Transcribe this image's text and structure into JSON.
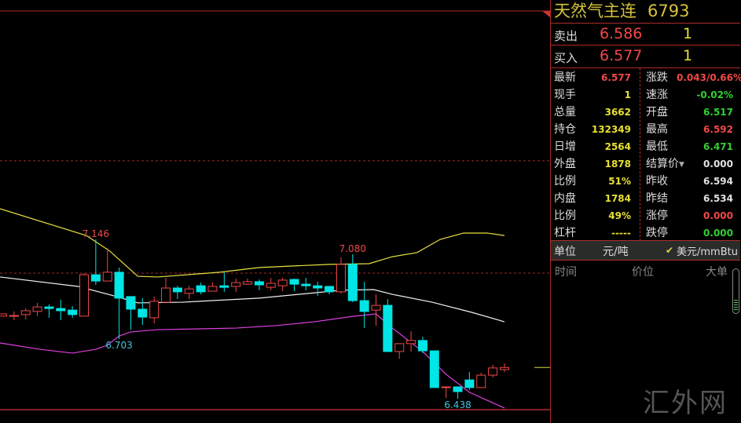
{
  "quote": {
    "name": "天然气主连",
    "code": "6793",
    "sell": {
      "label": "卖出",
      "price": "6.586",
      "qty": "1"
    },
    "buy": {
      "label": "买入",
      "price": "6.577",
      "qty": "1"
    },
    "left_fields": [
      {
        "label": "最新",
        "value": "6.577",
        "color": "#f04848"
      },
      {
        "label": "现手",
        "value": "1",
        "color": "#e8e030"
      },
      {
        "label": "总量",
        "value": "3662",
        "color": "#e8e030"
      },
      {
        "label": "持仓",
        "value": "132349",
        "color": "#e8e030"
      },
      {
        "label": "日增",
        "value": "2564",
        "color": "#e8e030"
      },
      {
        "label": "外盘",
        "value": "1878",
        "color": "#e8e030"
      },
      {
        "label": "比例",
        "value": "51%",
        "color": "#e8e030"
      },
      {
        "label": "内盘",
        "value": "1784",
        "color": "#e8e030"
      },
      {
        "label": "比例",
        "value": "49%",
        "color": "#e8e030"
      },
      {
        "label": "杠杆",
        "value": "-----",
        "color": "#e8e030"
      }
    ],
    "right_fields": [
      {
        "label": "涨跌",
        "value": "0.043/0.66%",
        "color": "#f04848"
      },
      {
        "label": "速涨",
        "value": "-0.02%",
        "color": "#30d030"
      },
      {
        "label": "开盘",
        "value": "6.517",
        "color": "#30d030"
      },
      {
        "label": "最高",
        "value": "6.592",
        "color": "#f04848"
      },
      {
        "label": "最低",
        "value": "6.471",
        "color": "#30d030"
      },
      {
        "label": "结算价",
        "value": "0.000",
        "color": "#e0e0e0",
        "dropdown": true
      },
      {
        "label": "昨收",
        "value": "6.594",
        "color": "#e0e0e0"
      },
      {
        "label": "昨结",
        "value": "6.534",
        "color": "#e0e0e0"
      },
      {
        "label": "涨停",
        "value": "0.000",
        "color": "#f04848"
      },
      {
        "label": "跌停",
        "value": "0.000",
        "color": "#30d030"
      }
    ],
    "unit": {
      "label": "单位",
      "option1": "元/吨",
      "option2": "美元/mmBtu",
      "selected": "美元/mmBtu"
    },
    "trade_headers": [
      "时间",
      "价位",
      "大单"
    ],
    "watermark": "汇外网"
  },
  "chart_data": {
    "type": "candlestick",
    "up_color": "#f04848",
    "down_color": "#00e5e5",
    "ylim": [
      6.37,
      7.5
    ],
    "annotations": [
      {
        "text": "7.146",
        "bar": 9,
        "price": 7.146,
        "color": "#f04848"
      },
      {
        "text": "6.703",
        "bar": 11,
        "price": 6.703,
        "color": "#40c8e0"
      },
      {
        "text": "7.080",
        "bar": 31,
        "price": 7.08,
        "color": "#f04848"
      },
      {
        "text": "6.438",
        "bar": 40,
        "price": 6.438,
        "color": "#40c8e0"
      }
    ],
    "reference_lines": [
      7.495,
      6.996
    ],
    "last_price": 6.577,
    "ohlc": [
      [
        6.805,
        6.815,
        6.805,
        6.815
      ],
      [
        6.808,
        6.826,
        6.787,
        6.808
      ],
      [
        6.812,
        6.839,
        6.791,
        6.829
      ],
      [
        6.826,
        6.864,
        6.805,
        6.846
      ],
      [
        6.846,
        6.857,
        6.798,
        6.839
      ],
      [
        6.839,
        6.878,
        6.787,
        6.829
      ],
      [
        6.832,
        6.85,
        6.798,
        6.812
      ],
      [
        6.805,
        6.996,
        6.805,
        6.989
      ],
      [
        6.989,
        7.146,
        6.944,
        6.961
      ],
      [
        6.961,
        7.108,
        6.961,
        7.0
      ],
      [
        7.0,
        7.021,
        6.703,
        6.885
      ],
      [
        6.892,
        6.892,
        6.745,
        6.836
      ],
      [
        6.836,
        6.885,
        6.766,
        6.801
      ],
      [
        6.798,
        6.892,
        6.773,
        6.871
      ],
      [
        6.867,
        6.975,
        6.867,
        6.93
      ],
      [
        6.93,
        6.94,
        6.881,
        6.913
      ],
      [
        6.906,
        6.94,
        6.881,
        6.926
      ],
      [
        6.94,
        6.954,
        6.902,
        6.913
      ],
      [
        6.916,
        6.954,
        6.916,
        6.937
      ],
      [
        6.94,
        7.0,
        6.913,
        6.933
      ],
      [
        6.937,
        6.972,
        6.913,
        6.954
      ],
      [
        6.947,
        6.972,
        6.944,
        6.958
      ],
      [
        6.958,
        6.968,
        6.92,
        6.944
      ],
      [
        6.933,
        6.975,
        6.92,
        6.951
      ],
      [
        6.94,
        6.975,
        6.916,
        6.965
      ],
      [
        6.968,
        6.972,
        6.916,
        6.947
      ],
      [
        6.947,
        6.975,
        6.92,
        6.94
      ],
      [
        6.94,
        6.958,
        6.895,
        6.93
      ],
      [
        6.937,
        6.94,
        6.902,
        6.913
      ],
      [
        6.913,
        7.066,
        6.906,
        7.035
      ],
      [
        7.035,
        7.08,
        6.867,
        6.874
      ],
      [
        6.874,
        6.958,
        6.752,
        6.826
      ],
      [
        6.832,
        6.902,
        6.763,
        6.853
      ],
      [
        6.853,
        6.881,
        6.648,
        6.648
      ],
      [
        6.648,
        6.683,
        6.616,
        6.683
      ],
      [
        6.683,
        6.738,
        6.648,
        6.697
      ],
      [
        6.697,
        6.714,
        6.641,
        6.651
      ],
      [
        6.651,
        6.651,
        6.488,
        6.488
      ],
      [
        6.488,
        6.494,
        6.442,
        6.491
      ],
      [
        6.491,
        6.491,
        6.438,
        6.47
      ],
      [
        6.522,
        6.557,
        6.477,
        6.488
      ],
      [
        6.488,
        6.554,
        6.488,
        6.543
      ],
      [
        6.543,
        6.589,
        6.533,
        6.575
      ],
      [
        6.568,
        6.596,
        6.557,
        6.577
      ]
    ],
    "bands": [
      {
        "color": "#e8e040",
        "points": [
          [
            0.8,
            7.282
          ],
          [
            8.2,
            7.163
          ],
          [
            10.2,
            7.094
          ],
          [
            12.6,
            6.982
          ],
          [
            14.3,
            6.979
          ],
          [
            19.6,
            7.0
          ],
          [
            23,
            7.021
          ],
          [
            29,
            7.035
          ],
          [
            32.4,
            7.038
          ],
          [
            34.4,
            7.069
          ],
          [
            36.5,
            7.087
          ],
          [
            38.5,
            7.146
          ],
          [
            40.5,
            7.174
          ],
          [
            42.5,
            7.174
          ],
          [
            44,
            7.163
          ]
        ]
      },
      {
        "color": "#f0f0f0",
        "points": [
          [
            0.8,
            6.979
          ],
          [
            7.5,
            6.937
          ],
          [
            10.8,
            6.892
          ],
          [
            12.6,
            6.864
          ],
          [
            16.4,
            6.867
          ],
          [
            23,
            6.885
          ],
          [
            30,
            6.92
          ],
          [
            32.8,
            6.923
          ],
          [
            34.4,
            6.902
          ],
          [
            37.8,
            6.867
          ],
          [
            41.2,
            6.822
          ],
          [
            44,
            6.78
          ]
        ]
      },
      {
        "color": "#e040e0",
        "points": [
          [
            0.8,
            6.686
          ],
          [
            4.2,
            6.658
          ],
          [
            7,
            6.641
          ],
          [
            9,
            6.658
          ],
          [
            10,
            6.676
          ],
          [
            11,
            6.717
          ],
          [
            12,
            6.735
          ],
          [
            14.3,
            6.745
          ],
          [
            21,
            6.752
          ],
          [
            24.4,
            6.763
          ],
          [
            27.7,
            6.78
          ],
          [
            31,
            6.804
          ],
          [
            33,
            6.815
          ],
          [
            34.4,
            6.752
          ],
          [
            37,
            6.648
          ],
          [
            39,
            6.547
          ],
          [
            41,
            6.467
          ],
          [
            42.5,
            6.432
          ],
          [
            44,
            6.397
          ]
        ]
      }
    ]
  }
}
